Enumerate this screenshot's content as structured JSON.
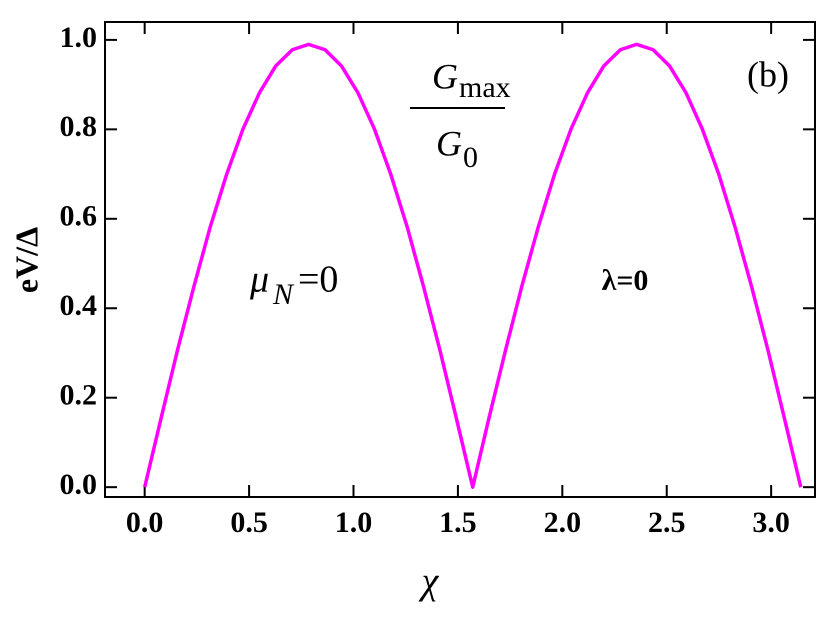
{
  "chart_data": {
    "type": "line",
    "xlabel": "χ",
    "ylabel": "eV/Δ",
    "annotations": {
      "panel": "(b)",
      "fraction": {
        "numerator": {
          "base": "G",
          "sub": "max"
        },
        "denominator": {
          "base": "G",
          "sub": "0"
        }
      },
      "left": {
        "base": "μ",
        "sub": "N",
        "rest": "=0"
      },
      "right": "λ=0"
    },
    "x": [
      0,
      0.079,
      0.157,
      0.236,
      0.314,
      0.393,
      0.471,
      0.55,
      0.628,
      0.707,
      0.785,
      0.864,
      0.942,
      1.021,
      1.1,
      1.178,
      1.257,
      1.335,
      1.414,
      1.492,
      1.571,
      1.649,
      1.728,
      1.806,
      1.885,
      1.963,
      2.042,
      2.121,
      2.199,
      2.278,
      2.356,
      2.435,
      2.513,
      2.592,
      2.67,
      2.749,
      2.827,
      2.906,
      2.985,
      3.063,
      3.142
    ],
    "series": [
      {
        "color": "#ff00ff",
        "values": [
          0,
          0.155,
          0.306,
          0.449,
          0.582,
          0.7,
          0.801,
          0.882,
          0.942,
          0.978,
          0.99,
          0.978,
          0.942,
          0.882,
          0.801,
          0.7,
          0.582,
          0.449,
          0.306,
          0.155,
          0,
          0.155,
          0.306,
          0.449,
          0.582,
          0.7,
          0.801,
          0.882,
          0.942,
          0.978,
          0.99,
          0.978,
          0.942,
          0.882,
          0.801,
          0.7,
          0.582,
          0.449,
          0.306,
          0.155,
          0
        ]
      }
    ],
    "xlim": [
      -0.19,
      3.21
    ],
    "ylim": [
      -0.022,
      1.04
    ],
    "xticks": [
      {
        "value": 0,
        "label": "0.0"
      },
      0.5,
      {
        "value": 1,
        "label": "1.0"
      },
      1.5,
      {
        "value": 2,
        "label": "2.0"
      },
      2.5,
      {
        "value": 3,
        "label": "3.0"
      }
    ],
    "yticks": [
      {
        "value": 0,
        "label": "0.0"
      },
      0.2,
      0.4,
      0.6,
      0.8,
      {
        "value": 1,
        "label": "1.0"
      }
    ]
  }
}
